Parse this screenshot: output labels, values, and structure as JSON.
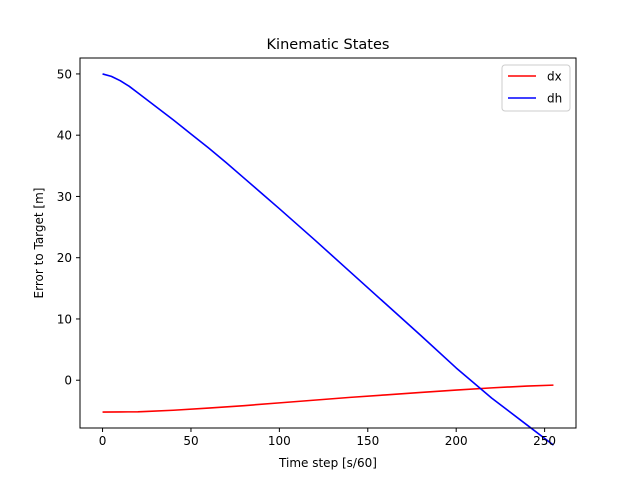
{
  "chart_data": {
    "type": "line",
    "title": "Kinematic States",
    "xlabel": "Time step [s/60]",
    "ylabel": "Error to Target [m]",
    "xlim": [
      -12.75,
      267.75
    ],
    "ylim": [
      -7.8,
      52.6
    ],
    "xticks": [
      0,
      50,
      100,
      150,
      200,
      250
    ],
    "yticks": [
      0,
      10,
      20,
      30,
      40,
      50
    ],
    "grid": false,
    "legend_position": "top-right",
    "series": [
      {
        "name": "dx",
        "color": "#ff0000",
        "x": [
          0,
          10,
          20,
          25,
          40,
          60,
          80,
          100,
          120,
          140,
          160,
          180,
          200,
          220,
          240,
          255
        ],
        "y": [
          -5.2,
          -5.18,
          -5.15,
          -5.1,
          -4.9,
          -4.55,
          -4.15,
          -3.7,
          -3.25,
          -2.8,
          -2.4,
          -2.0,
          -1.6,
          -1.25,
          -0.95,
          -0.8
        ]
      },
      {
        "name": "dh",
        "color": "#0000ff",
        "x": [
          0,
          5,
          10,
          15,
          20,
          30,
          40,
          50,
          60,
          70,
          80,
          90,
          100,
          120,
          140,
          160,
          180,
          200,
          220,
          240,
          255
        ],
        "y": [
          50,
          49.6,
          48.9,
          48.0,
          46.9,
          44.7,
          42.5,
          40.2,
          37.9,
          35.5,
          33.0,
          30.5,
          28.0,
          22.9,
          17.7,
          12.5,
          7.3,
          2.0,
          -2.9,
          -7.3,
          -10.6
        ]
      }
    ]
  }
}
